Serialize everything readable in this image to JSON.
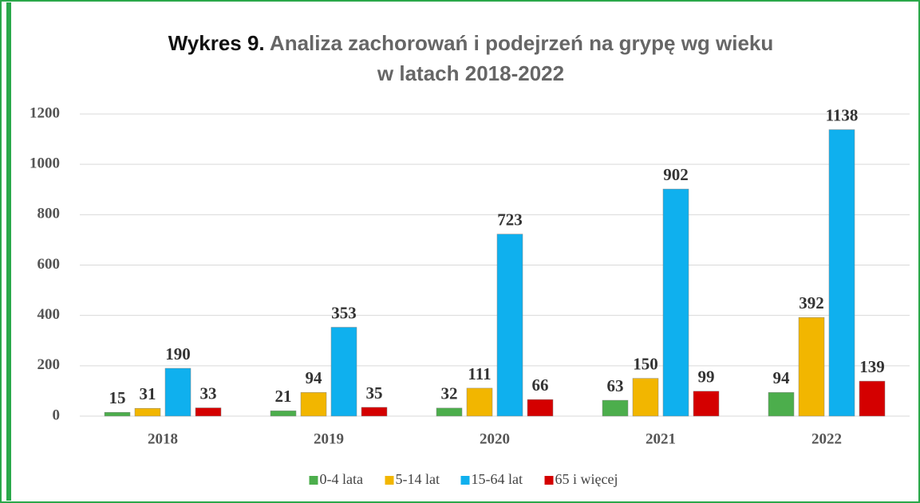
{
  "chart_data": {
    "type": "bar",
    "title_prefix": "Wykres 9.",
    "title_lines": [
      "Analiza zachorowań i podejrzeń na grypę wg wieku",
      "w latach 2018-2022"
    ],
    "categories": [
      "2018",
      "2019",
      "2020",
      "2021",
      "2022"
    ],
    "series": [
      {
        "name": "0-4 lata",
        "color": "#4cae4c",
        "values": [
          15,
          21,
          32,
          63,
          94
        ]
      },
      {
        "name": "5-14 lat",
        "color": "#f2b600",
        "values": [
          31,
          94,
          111,
          150,
          392
        ]
      },
      {
        "name": "15-64 lat",
        "color": "#0fb0ee",
        "values": [
          190,
          353,
          723,
          902,
          1138
        ]
      },
      {
        "name": "65 i więcej",
        "color": "#d40000",
        "values": [
          33,
          35,
          66,
          99,
          139
        ]
      }
    ],
    "ylim": [
      0,
      1200
    ],
    "yticks": [
      0,
      200,
      400,
      600,
      800,
      1000,
      1200
    ],
    "grid": true,
    "legend": "bottom"
  }
}
